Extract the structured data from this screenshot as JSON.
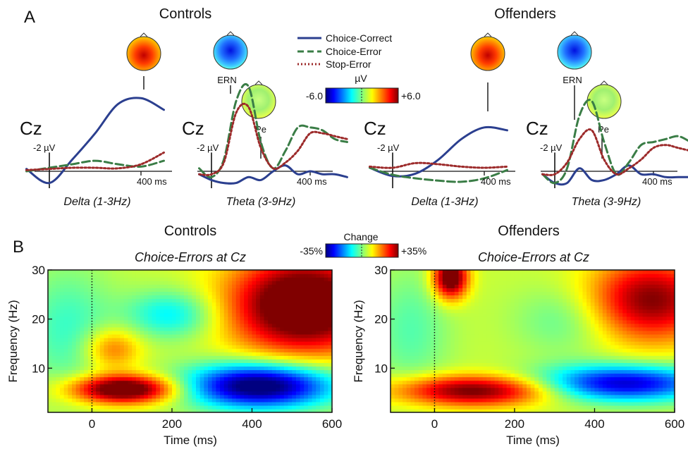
{
  "panel_labels": {
    "a": "A",
    "b": "B"
  },
  "groups": {
    "controls": "Controls",
    "offenders": "Offenders"
  },
  "erp_legend": [
    {
      "name": "Choice-Correct",
      "color": "#2b3f8f",
      "dash": "solid"
    },
    {
      "name": "Choice-Error",
      "color": "#3a7d46",
      "dash": "dashed"
    },
    {
      "name": "Stop-Error",
      "color": "#9c2a2a",
      "dash": "dotted"
    }
  ],
  "erp_labels": {
    "electrode": "Cz",
    "scale": "-2 µV",
    "time_marker": "400 ms",
    "delta": "Delta (1-3Hz)",
    "theta": "Theta (3-9Hz)",
    "ern": "ERN",
    "pe": "Pe"
  },
  "topo_colorbar": {
    "unit": "µV",
    "min_label": "-6.0",
    "max_label": "+6.0"
  },
  "tf_colorbar": {
    "title": "Change",
    "min_label": "-35%",
    "max_label": "+35%"
  },
  "tf_subtitle": "Choice-Errors at Cz",
  "tf_axes": {
    "xlabel": "Time (ms)",
    "ylabel": "Frequency (Hz)",
    "xticks": [
      "0",
      "200",
      "400",
      "600"
    ],
    "yticks": [
      "10",
      "20",
      "30"
    ]
  },
  "chart_data": [
    {
      "type": "line",
      "panel": "A",
      "group": "Controls",
      "band": "Delta (1-3Hz)",
      "electrode": "Cz",
      "x": [
        -100,
        0,
        100,
        200,
        300,
        400,
        500
      ],
      "series": [
        {
          "name": "Choice-Correct",
          "values": [
            0.4,
            -2.0,
            2.0,
            6.5,
            11.5,
            12.5,
            10.5
          ]
        },
        {
          "name": "Choice-Error",
          "values": [
            0.0,
            0.6,
            1.2,
            1.8,
            1.2,
            0.8,
            1.8
          ]
        },
        {
          "name": "Stop-Error",
          "values": [
            0.2,
            0.4,
            0.6,
            0.6,
            0.5,
            1.2,
            3.2
          ]
        }
      ]
    },
    {
      "type": "line",
      "panel": "A",
      "group": "Controls",
      "band": "Theta (3-9Hz)",
      "electrode": "Cz",
      "x": [
        -50,
        0,
        50,
        100,
        150,
        200,
        250,
        300,
        350,
        400,
        450,
        500,
        550
      ],
      "series": [
        {
          "name": "Choice-Correct",
          "values": [
            -0.5,
            -1.5,
            -2.0,
            -2.0,
            -1.0,
            -1.5,
            0.0,
            1.0,
            -0.5,
            0.0,
            -0.5,
            -0.5,
            -1.0
          ]
        },
        {
          "name": "Choice-Error",
          "values": [
            0.5,
            -1.0,
            2.0,
            12.0,
            14.5,
            5.0,
            0.5,
            3.5,
            7.5,
            7.5,
            7.0,
            5.5,
            5.0
          ]
        },
        {
          "name": "Stop-Error",
          "values": [
            -0.5,
            -0.5,
            1.5,
            10.0,
            11.0,
            4.0,
            0.5,
            1.5,
            3.5,
            6.5,
            6.5,
            6.0,
            5.5
          ]
        }
      ]
    },
    {
      "type": "line",
      "panel": "A",
      "group": "Offenders",
      "band": "Delta (1-3Hz)",
      "electrode": "Cz",
      "x": [
        -100,
        0,
        100,
        200,
        300,
        400,
        500
      ],
      "series": [
        {
          "name": "Choice-Correct",
          "values": [
            0.6,
            -0.8,
            -0.4,
            2.0,
            5.5,
            7.5,
            7.0
          ]
        },
        {
          "name": "Choice-Error",
          "values": [
            0.6,
            -0.6,
            -1.2,
            -1.6,
            -1.8,
            -1.2,
            0.2
          ]
        },
        {
          "name": "Stop-Error",
          "values": [
            0.8,
            0.6,
            1.4,
            1.2,
            0.8,
            0.6,
            0.8
          ]
        }
      ]
    },
    {
      "type": "line",
      "panel": "A",
      "group": "Offenders",
      "band": "Theta (3-9Hz)",
      "electrode": "Cz",
      "x": [
        -50,
        0,
        50,
        100,
        150,
        200,
        250,
        300,
        350,
        400,
        450,
        500,
        550
      ],
      "series": [
        {
          "name": "Choice-Correct",
          "values": [
            -0.5,
            -2.0,
            -2.0,
            0.5,
            -1.5,
            -1.5,
            -0.5,
            1.0,
            -0.5,
            -0.5,
            -1.0,
            -1.0,
            -1.0
          ]
        },
        {
          "name": "Choice-Error",
          "values": [
            -0.5,
            -2.0,
            0.5,
            9.5,
            12.0,
            5.0,
            -0.5,
            1.5,
            4.5,
            5.0,
            5.5,
            6.0,
            5.0
          ]
        },
        {
          "name": "Stop-Error",
          "values": [
            -0.5,
            -0.5,
            1.5,
            5.5,
            7.0,
            2.0,
            -0.5,
            0.5,
            2.0,
            4.0,
            4.5,
            4.0,
            3.5
          ]
        }
      ]
    },
    {
      "type": "heatmap",
      "panel": "B",
      "group": "Controls",
      "title": "Choice-Errors at Cz",
      "xlabel": "Time (ms)",
      "ylabel": "Frequency (Hz)",
      "xlim": [
        -110,
        600
      ],
      "ylim": [
        1,
        30
      ],
      "zlim": [
        -35,
        35
      ],
      "blobs": [
        {
          "t": 80,
          "f": 5.8,
          "st": 90,
          "sf": 2.0,
          "v": 40
        },
        {
          "t": 50,
          "f": 14.0,
          "st": 50,
          "sf": 3.0,
          "v": 15
        },
        {
          "t": 420,
          "f": 6.5,
          "st": 130,
          "sf": 3.2,
          "v": -45
        },
        {
          "t": 530,
          "f": 23.0,
          "st": 130,
          "sf": 7.0,
          "v": 42
        },
        {
          "t": 200,
          "f": 21.0,
          "st": 80,
          "sf": 3.5,
          "v": -15
        },
        {
          "t": -60,
          "f": 18.0,
          "st": 80,
          "sf": 9.0,
          "v": -10
        }
      ]
    },
    {
      "type": "heatmap",
      "panel": "B",
      "group": "Offenders",
      "title": "Choice-Errors at Cz",
      "xlabel": "Time (ms)",
      "ylabel": "Frequency (Hz)",
      "xlim": [
        -110,
        600
      ],
      "ylim": [
        1,
        30
      ],
      "zlim": [
        -35,
        35
      ],
      "blobs": [
        {
          "t": 100,
          "f": 5.5,
          "st": 140,
          "sf": 2.2,
          "v": 32
        },
        {
          "t": 40,
          "f": 28.5,
          "st": 30,
          "sf": 3.0,
          "v": 38
        },
        {
          "t": 470,
          "f": 7.0,
          "st": 150,
          "sf": 2.6,
          "v": -35
        },
        {
          "t": 540,
          "f": 24.0,
          "st": 110,
          "sf": 6.0,
          "v": 30
        },
        {
          "t": 330,
          "f": 20.0,
          "st": 90,
          "sf": 5.0,
          "v": -8
        },
        {
          "t": -60,
          "f": 18.0,
          "st": 70,
          "sf": 9.0,
          "v": -8
        }
      ]
    }
  ]
}
